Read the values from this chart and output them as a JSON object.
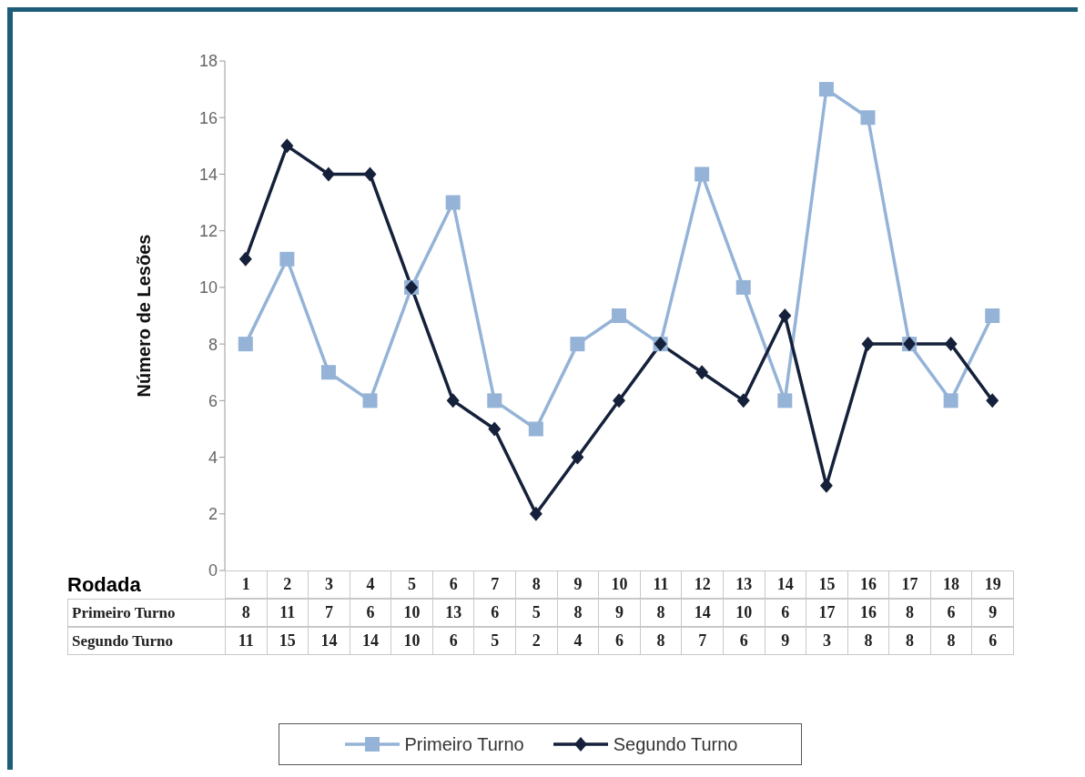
{
  "chart_data": {
    "type": "line",
    "xlabel": "Rodada",
    "ylabel": "Número de Lesões",
    "categories": [
      "1",
      "2",
      "3",
      "4",
      "5",
      "6",
      "7",
      "8",
      "9",
      "10",
      "11",
      "12",
      "13",
      "14",
      "15",
      "16",
      "17",
      "18",
      "19"
    ],
    "series": [
      {
        "name": "Primeiro Turno",
        "color": "#95b3d7",
        "marker": "square",
        "values": [
          8,
          11,
          7,
          6,
          10,
          13,
          6,
          5,
          8,
          9,
          8,
          14,
          10,
          6,
          17,
          16,
          8,
          6,
          9
        ]
      },
      {
        "name": "Segundo Turno",
        "color": "#15213a",
        "marker": "diamond",
        "values": [
          11,
          15,
          14,
          14,
          10,
          6,
          5,
          2,
          4,
          6,
          8,
          7,
          6,
          9,
          3,
          8,
          8,
          8,
          6
        ]
      }
    ],
    "ylim": [
      0,
      18
    ],
    "yticks": [
      0,
      2,
      4,
      6,
      8,
      10,
      12,
      14,
      16,
      18
    ],
    "grid": false,
    "legend": "bottom",
    "data_labels": true,
    "line_style": "solid"
  }
}
